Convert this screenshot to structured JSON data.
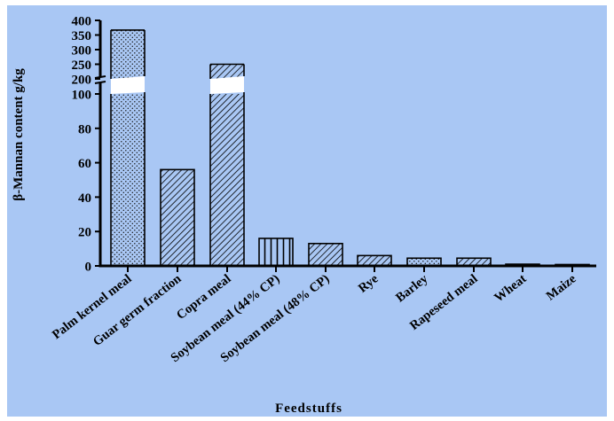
{
  "chart_data": {
    "type": "bar",
    "title": "",
    "xlabel": "Feedstuffs",
    "ylabel": "β-Mannan content g/kg",
    "categories": [
      "Palm kernel meal",
      "Guar germ fraction",
      "Copra meal",
      "Soybean meal (44% CP)",
      "Soybean meal (48% CP)",
      "Rye",
      "Barley",
      "Rapeseed meal",
      "Wheat",
      "Maize"
    ],
    "values": [
      367,
      56,
      250,
      16,
      13,
      6,
      4.5,
      4.5,
      1,
      0.8
    ],
    "patterns": [
      "dots",
      "diag",
      "diag",
      "vert",
      "diag",
      "diag",
      "dots",
      "diag",
      "diag",
      "diag"
    ],
    "axis_break": true,
    "ylim_lower": [
      0,
      100
    ],
    "ylim_upper": [
      200,
      400
    ],
    "yticks_lower": [
      "0",
      "20",
      "40",
      "60",
      "80",
      "100"
    ],
    "yticks_upper": [
      "200",
      "250",
      "300",
      "350",
      "400"
    ],
    "grid": false,
    "legend": "none",
    "colors": {
      "background": "#a9c7f4",
      "bar_fill": "#a9c7f4",
      "bar_stroke": "#000000",
      "axis": "#000000"
    }
  }
}
